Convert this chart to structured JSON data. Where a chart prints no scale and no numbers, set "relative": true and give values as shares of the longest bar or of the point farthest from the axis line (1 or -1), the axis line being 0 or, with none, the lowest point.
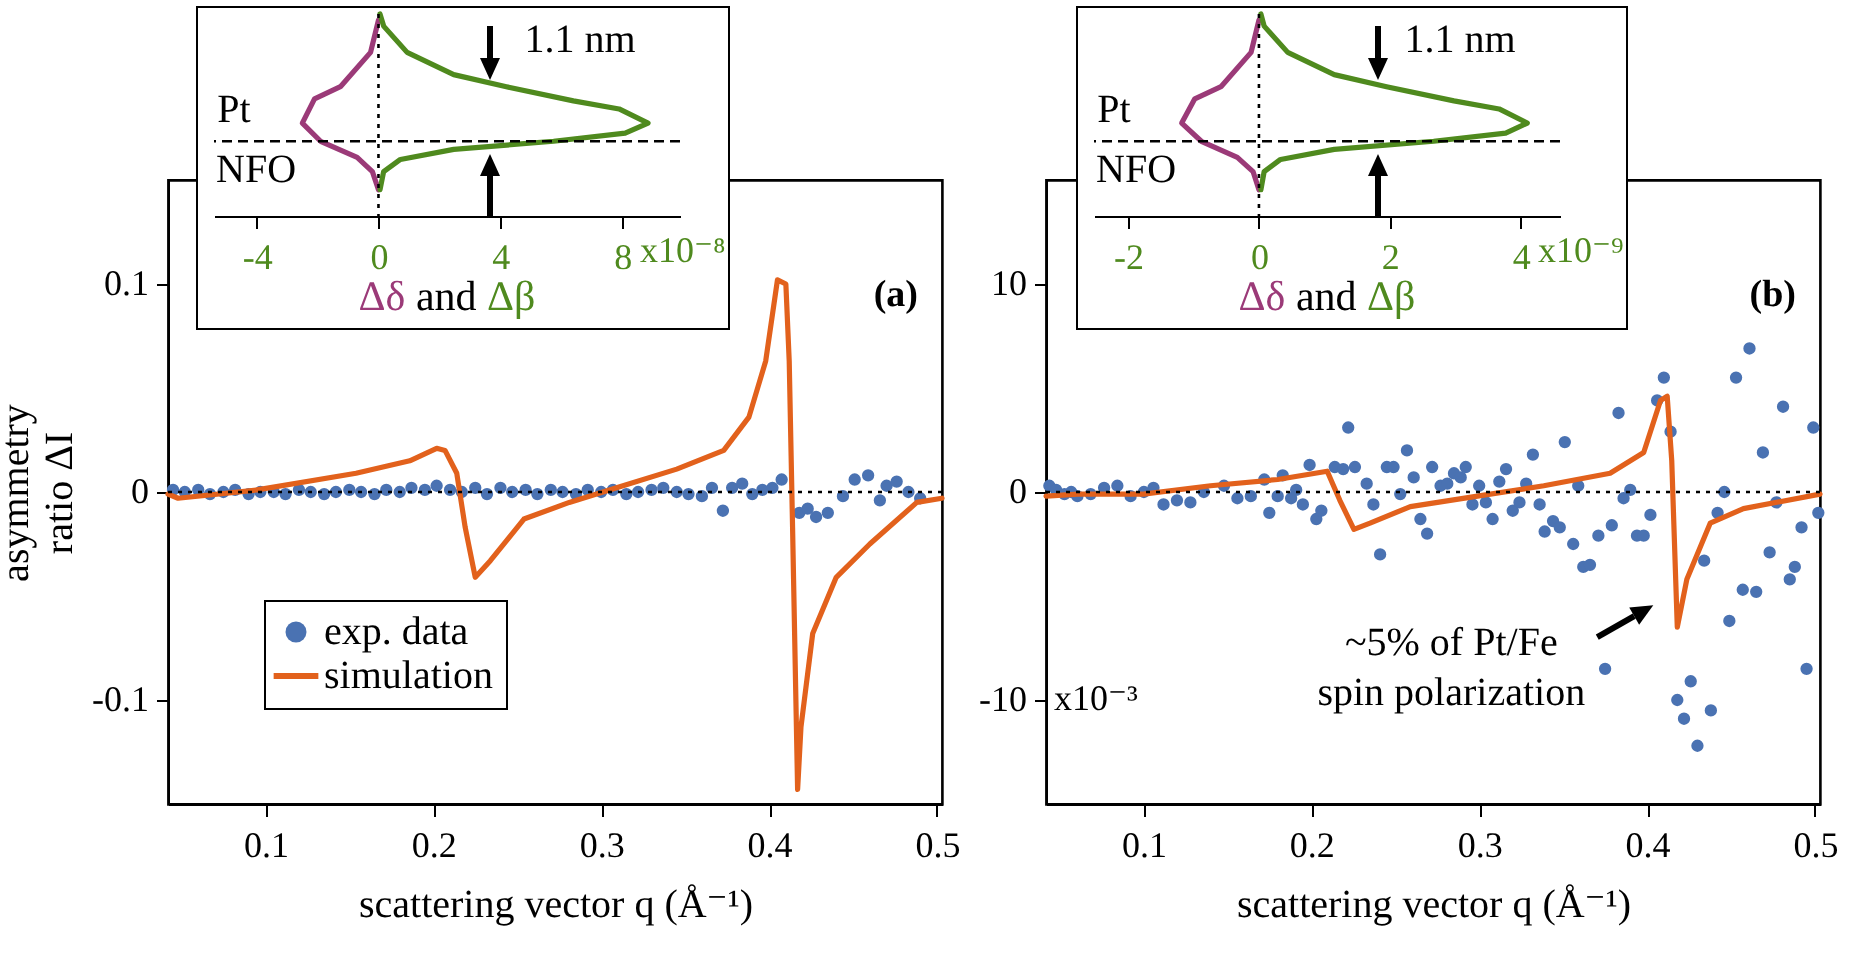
{
  "chart_data": [
    {
      "type": "line",
      "relative": true,
      "xlim": [
        -5.4,
        9.9
      ],
      "xticks": [
        -4,
        0,
        4,
        8
      ],
      "xlabel": "Δδ and Δβ",
      "tick_labels": "x",
      "series": [
        {
          "color": "#9b3a78",
          "x": [
            0,
            -0.26,
            -1.25,
            -2.1,
            -2.5,
            -1.9,
            -0.7,
            -0.2,
            0
          ],
          "values": [
            0.97,
            0.81,
            0.64,
            0.58,
            0.46,
            0.37,
            0.29,
            0.22,
            0.13
          ]
        },
        {
          "color": "#4f8a1e",
          "x": [
            0.05,
            0.17,
            0.94,
            2.47,
            4.2,
            6.4,
            7.9,
            8.85,
            8.1,
            5.75,
            2.47,
            0.72,
            0.17,
            0.05
          ],
          "values": [
            1.0,
            0.94,
            0.81,
            0.7,
            0.64,
            0.57,
            0.53,
            0.46,
            0.41,
            0.37,
            0.33,
            0.28,
            0.22,
            0.13
          ]
        }
      ],
      "ref_lines": [
        {
          "axis": "y",
          "value": 0.37,
          "line_style": "dashed"
        },
        {
          "axis": "x",
          "value": 0,
          "line_style": "dotted"
        }
      ],
      "annotations": [
        "1.1 nm",
        "Pt",
        "NFO",
        "x10⁻⁸"
      ]
    },
    {
      "type": "scatter",
      "xlabel": "scattering vector q (Å⁻¹)",
      "ylabel": "asymmetry ratio ΔI",
      "xlim": [
        0.042,
        0.503
      ],
      "xticks": [
        0.1,
        0.2,
        0.3,
        0.4,
        0.5
      ],
      "ylim": [
        -0.15,
        0.15
      ],
      "yticks": [
        -0.1,
        0,
        0.1
      ],
      "legend": "bottom left",
      "series": [
        {
          "name": "exp. data",
          "marker": "circle",
          "color": "#4a72b2",
          "x": [
            0.045,
            0.052,
            0.06,
            0.067,
            0.075,
            0.082,
            0.09,
            0.097,
            0.105,
            0.112,
            0.12,
            0.127,
            0.135,
            0.142,
            0.15,
            0.157,
            0.165,
            0.172,
            0.18,
            0.187,
            0.195,
            0.202,
            0.21,
            0.217,
            0.225,
            0.232,
            0.24,
            0.247,
            0.255,
            0.262,
            0.27,
            0.277,
            0.285,
            0.292,
            0.3,
            0.307,
            0.315,
            0.322,
            0.33,
            0.337,
            0.345,
            0.352,
            0.36,
            0.366,
            0.3725,
            0.378,
            0.384,
            0.39,
            0.396,
            0.402,
            0.4075,
            0.418,
            0.423,
            0.428,
            0.435,
            0.444,
            0.451,
            0.459,
            0.466,
            0.47,
            0.476,
            0.483,
            0.49
          ],
          "values": [
            0.001,
            0,
            0.001,
            -0.001,
            0,
            0.001,
            -0.001,
            0,
            0,
            -0.001,
            0.001,
            0,
            -0.001,
            0,
            0.001,
            0,
            -0.001,
            0.001,
            0,
            0.002,
            0.001,
            0.003,
            0.001,
            0,
            0.002,
            -0.001,
            0.002,
            0,
            0.001,
            -0.001,
            0.001,
            0,
            -0.001,
            0.001,
            0,
            0.001,
            -0.001,
            0,
            0.001,
            0.002,
            0,
            -0.001,
            -0.002,
            0.002,
            -0.009,
            0.002,
            0.004,
            -0.001,
            0.001,
            0.002,
            0.006,
            -0.01,
            -0.008,
            -0.012,
            -0.01,
            -0.002,
            0.006,
            0.008,
            -0.004,
            0.003,
            0.005,
            0,
            -0.003
          ]
        },
        {
          "name": "simulation",
          "type": "line",
          "color": "#e2611c",
          "x": [
            0.042,
            0.048,
            0.095,
            0.154,
            0.186,
            0.202,
            0.207,
            0.214,
            0.219,
            0.225,
            0.234,
            0.254,
            0.281,
            0.313,
            0.345,
            0.373,
            0.388,
            0.398,
            0.405,
            0.41,
            0.412,
            0.414,
            0.417,
            0.419,
            0.426,
            0.44,
            0.46,
            0.488,
            0.503
          ],
          "values": [
            -0.001,
            -0.003,
            0.001,
            0.009,
            0.015,
            0.021,
            0.02,
            0.009,
            -0.017,
            -0.041,
            -0.033,
            -0.013,
            -0.005,
            0.003,
            0.011,
            0.02,
            0.036,
            0.063,
            0.102,
            0.1,
            0.063,
            -0.017,
            -0.143,
            -0.113,
            -0.068,
            -0.041,
            -0.025,
            -0.005,
            -0.003
          ]
        }
      ],
      "ref_lines": [
        {
          "axis": "y",
          "value": 0,
          "line_style": "dotted"
        }
      ],
      "annotations": [
        "(a)"
      ]
    },
    {
      "type": "line",
      "relative": true,
      "xlim": [
        -2.52,
        4.6
      ],
      "xticks": [
        -2,
        0,
        2,
        4
      ],
      "xlabel": "Δδ and Δβ",
      "tick_labels": "x",
      "series": [
        {
          "color": "#9b3a78",
          "x": [
            0,
            -0.12,
            -0.58,
            -0.98,
            -1.18,
            -0.88,
            -0.33,
            -0.09,
            0
          ],
          "values": [
            0.97,
            0.81,
            0.64,
            0.58,
            0.46,
            0.37,
            0.29,
            0.22,
            0.13
          ]
        },
        {
          "color": "#4f8a1e",
          "x": [
            0.03,
            0.08,
            0.44,
            1.15,
            1.95,
            2.98,
            3.67,
            4.1,
            3.77,
            2.67,
            1.15,
            0.33,
            0.08,
            0.03
          ],
          "values": [
            1.0,
            0.94,
            0.81,
            0.7,
            0.64,
            0.57,
            0.53,
            0.46,
            0.41,
            0.37,
            0.33,
            0.28,
            0.22,
            0.13
          ]
        }
      ],
      "ref_lines": [
        {
          "axis": "y",
          "value": 0.37,
          "line_style": "dashed"
        },
        {
          "axis": "x",
          "value": 0,
          "line_style": "dotted"
        }
      ],
      "annotations": [
        "1.1 nm",
        "Pt",
        "NFO",
        "x10⁻⁹"
      ]
    },
    {
      "type": "scatter",
      "xlabel": "scattering vector q (Å⁻¹)",
      "xlim": [
        0.042,
        0.503
      ],
      "xticks": [
        0.1,
        0.2,
        0.3,
        0.4,
        0.5
      ],
      "ylim": [
        -15,
        15
      ],
      "yticks": [
        -10,
        0,
        10
      ],
      "series": [
        {
          "marker": "circle",
          "color": "#4a72b2",
          "x": [
            0.044,
            0.048,
            0.053,
            0.057,
            0.0607,
            0.0686,
            0.0766,
            0.0845,
            0.0924,
            0.1003,
            0.106,
            0.112,
            0.12,
            0.128,
            0.136,
            0.148,
            0.156,
            0.164,
            0.172,
            0.175,
            0.18,
            0.183,
            0.188,
            0.191,
            0.195,
            0.199,
            0.203,
            0.206,
            0.214,
            0.219,
            0.222,
            0.226,
            0.233,
            0.237,
            0.241,
            0.245,
            0.249,
            0.253,
            0.257,
            0.261,
            0.265,
            0.269,
            0.272,
            0.277,
            0.281,
            0.285,
            0.289,
            0.292,
            0.296,
            0.3,
            0.304,
            0.308,
            0.312,
            0.316,
            0.32,
            0.324,
            0.328,
            0.332,
            0.336,
            0.339,
            0.344,
            0.348,
            0.351,
            0.356,
            0.359,
            0.362,
            0.366,
            0.371,
            0.375,
            0.379,
            0.383,
            0.386,
            0.39,
            0.394,
            0.398,
            0.402,
            0.406,
            0.41,
            0.414,
            0.418,
            0.422,
            0.426,
            0.43,
            0.434,
            0.438,
            0.442,
            0.446,
            0.449,
            0.453,
            0.457,
            0.461,
            0.465,
            0.469,
            0.473,
            0.477,
            0.481,
            0.485,
            0.488,
            0.492,
            0.495,
            0.499,
            0.502
          ],
          "values": [
            0.3,
            0.1,
            -0.1,
            0,
            -0.2,
            -0.1,
            0.2,
            0.3,
            -0.2,
            0,
            0.2,
            -0.6,
            -0.4,
            -0.5,
            0,
            0.3,
            -0.3,
            -0.2,
            0.6,
            -1,
            -0.2,
            0.8,
            -0.3,
            0.1,
            -0.6,
            1.3,
            -1.3,
            -0.9,
            1.2,
            1.1,
            3.1,
            1.2,
            0.4,
            -0.6,
            -3,
            1.2,
            1.2,
            -0.1,
            2,
            0.7,
            -1.3,
            -2,
            1.2,
            0.3,
            0.4,
            0.9,
            0.7,
            1.2,
            -0.6,
            0.3,
            -0.5,
            -1.3,
            0.5,
            1.1,
            -0.9,
            -0.5,
            0.4,
            1.8,
            -0.6,
            -1.9,
            -1.4,
            -1.7,
            2.4,
            -2.5,
            0.3,
            -3.6,
            -3.5,
            -2.1,
            -8.5,
            -1.6,
            3.8,
            -0.3,
            0.1,
            -2.1,
            -2.1,
            -1.1,
            4.4,
            5.5,
            2.9,
            -10,
            -10.9,
            -9.1,
            -12.2,
            -3.3,
            -10.5,
            -1,
            0,
            -6.2,
            5.5,
            -4.7,
            6.9,
            -4.8,
            1.9,
            -2.9,
            -0.5,
            4.1,
            -4.2,
            -3.6,
            -1.7,
            -8.5,
            3.1,
            -1
          ]
        },
        {
          "type": "line",
          "color": "#e2611c",
          "x": [
            0.042,
            0.061,
            0.1,
            0.14,
            0.18,
            0.2095,
            0.217,
            0.2254,
            0.235,
            0.259,
            0.299,
            0.3385,
            0.378,
            0.398,
            0.408,
            0.412,
            0.4147,
            0.418,
            0.4237,
            0.4376,
            0.4574,
            0.503
          ],
          "values": [
            -0.2,
            -0.1,
            -0.1,
            0.3,
            0.6,
            1,
            -0.4,
            -1.8,
            -1.5,
            -0.7,
            -0.2,
            0.3,
            0.9,
            1.9,
            4.4,
            4.6,
            1.5,
            -6.5,
            -4.2,
            -1.5,
            -0.8,
            -0.1
          ]
        }
      ],
      "ref_lines": [
        {
          "axis": "y",
          "value": 0,
          "line_style": "dotted"
        }
      ],
      "annotations": [
        "(b)",
        "x10⁻³",
        {
          "text": "~5% of Pt/Fe\nspin polarization",
          "x": 0.418,
          "y": -6.5
        }
      ]
    }
  ]
}
